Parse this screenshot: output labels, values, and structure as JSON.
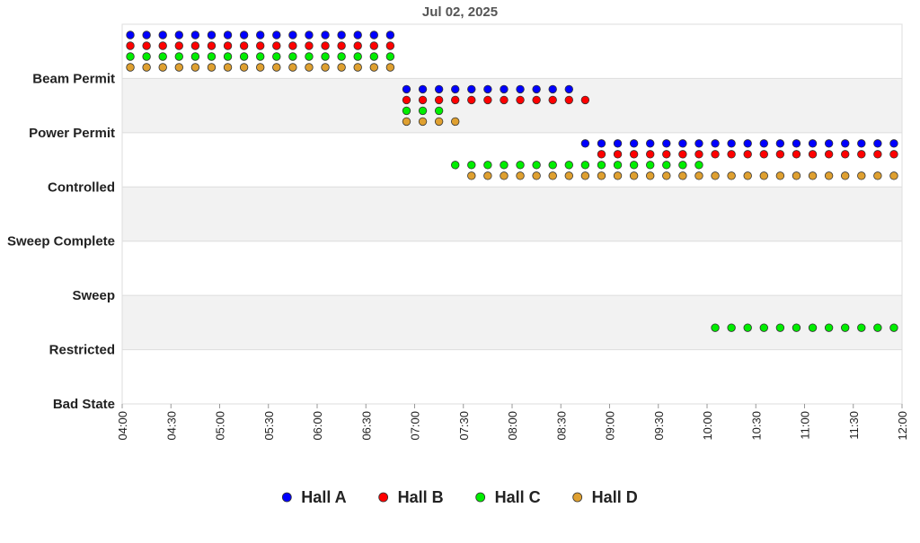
{
  "chart_data": {
    "type": "scatter",
    "title": "Jul 02, 2025",
    "y_categories": [
      "Bad State",
      "Restricted",
      "Sweep",
      "Sweep Complete",
      "Controlled",
      "Power Permit",
      "Beam Permit"
    ],
    "xlim": [
      "04:00",
      "12:00"
    ],
    "xticks": [
      "04:00",
      "04:30",
      "05:00",
      "05:30",
      "06:00",
      "06:30",
      "07:00",
      "07:30",
      "08:00",
      "08:30",
      "09:00",
      "09:30",
      "10:00",
      "10:30",
      "11:00",
      "11:30",
      "12:00"
    ],
    "x": [
      "04:05",
      "04:15",
      "04:25",
      "04:35",
      "04:45",
      "04:55",
      "05:05",
      "05:15",
      "05:25",
      "05:35",
      "05:45",
      "05:55",
      "06:05",
      "06:15",
      "06:25",
      "06:35",
      "06:45",
      "06:55",
      "07:05",
      "07:15",
      "07:25",
      "07:35",
      "07:45",
      "07:55",
      "08:05",
      "08:15",
      "08:25",
      "08:35",
      "08:45",
      "08:55",
      "09:05",
      "09:15",
      "09:25",
      "09:35",
      "09:45",
      "09:55",
      "10:05",
      "10:15",
      "10:25",
      "10:35",
      "10:45",
      "10:55",
      "11:05",
      "11:15",
      "11:25",
      "11:35",
      "11:45",
      "11:55"
    ],
    "series": [
      {
        "name": "Hall A",
        "color": "#0000ff",
        "values": [
          "Beam Permit",
          "Beam Permit",
          "Beam Permit",
          "Beam Permit",
          "Beam Permit",
          "Beam Permit",
          "Beam Permit",
          "Beam Permit",
          "Beam Permit",
          "Beam Permit",
          "Beam Permit",
          "Beam Permit",
          "Beam Permit",
          "Beam Permit",
          "Beam Permit",
          "Beam Permit",
          "Beam Permit",
          "Power Permit",
          "Power Permit",
          "Power Permit",
          "Power Permit",
          "Power Permit",
          "Power Permit",
          "Power Permit",
          "Power Permit",
          "Power Permit",
          "Power Permit",
          "Power Permit",
          "Controlled",
          "Controlled",
          "Controlled",
          "Controlled",
          "Controlled",
          "Controlled",
          "Controlled",
          "Controlled",
          "Controlled",
          "Controlled",
          "Controlled",
          "Controlled",
          "Controlled",
          "Controlled",
          "Controlled",
          "Controlled",
          "Controlled",
          "Controlled",
          "Controlled",
          "Controlled"
        ]
      },
      {
        "name": "Hall B",
        "color": "#ff0000",
        "values": [
          "Beam Permit",
          "Beam Permit",
          "Beam Permit",
          "Beam Permit",
          "Beam Permit",
          "Beam Permit",
          "Beam Permit",
          "Beam Permit",
          "Beam Permit",
          "Beam Permit",
          "Beam Permit",
          "Beam Permit",
          "Beam Permit",
          "Beam Permit",
          "Beam Permit",
          "Beam Permit",
          "Beam Permit",
          "Power Permit",
          "Power Permit",
          "Power Permit",
          "Power Permit",
          "Power Permit",
          "Power Permit",
          "Power Permit",
          "Power Permit",
          "Power Permit",
          "Power Permit",
          "Power Permit",
          "Power Permit",
          "Controlled",
          "Controlled",
          "Controlled",
          "Controlled",
          "Controlled",
          "Controlled",
          "Controlled",
          "Controlled",
          "Controlled",
          "Controlled",
          "Controlled",
          "Controlled",
          "Controlled",
          "Controlled",
          "Controlled",
          "Controlled",
          "Controlled",
          "Controlled",
          "Controlled"
        ]
      },
      {
        "name": "Hall C",
        "color": "#00ee00",
        "values": [
          "Beam Permit",
          "Beam Permit",
          "Beam Permit",
          "Beam Permit",
          "Beam Permit",
          "Beam Permit",
          "Beam Permit",
          "Beam Permit",
          "Beam Permit",
          "Beam Permit",
          "Beam Permit",
          "Beam Permit",
          "Beam Permit",
          "Beam Permit",
          "Beam Permit",
          "Beam Permit",
          "Beam Permit",
          "Power Permit",
          "Power Permit",
          "Power Permit",
          "Controlled",
          "Controlled",
          "Controlled",
          "Controlled",
          "Controlled",
          "Controlled",
          "Controlled",
          "Controlled",
          "Controlled",
          "Controlled",
          "Controlled",
          "Controlled",
          "Controlled",
          "Controlled",
          "Controlled",
          "Controlled",
          "Restricted",
          "Restricted",
          "Restricted",
          "Restricted",
          "Restricted",
          "Restricted",
          "Restricted",
          "Restricted",
          "Restricted",
          "Restricted",
          "Restricted",
          "Restricted"
        ]
      },
      {
        "name": "Hall D",
        "color": "#dfa030",
        "values": [
          "Beam Permit",
          "Beam Permit",
          "Beam Permit",
          "Beam Permit",
          "Beam Permit",
          "Beam Permit",
          "Beam Permit",
          "Beam Permit",
          "Beam Permit",
          "Beam Permit",
          "Beam Permit",
          "Beam Permit",
          "Beam Permit",
          "Beam Permit",
          "Beam Permit",
          "Beam Permit",
          "Beam Permit",
          "Power Permit",
          "Power Permit",
          "Power Permit",
          "Power Permit",
          "Controlled",
          "Controlled",
          "Controlled",
          "Controlled",
          "Controlled",
          "Controlled",
          "Controlled",
          "Controlled",
          "Controlled",
          "Controlled",
          "Controlled",
          "Controlled",
          "Controlled",
          "Controlled",
          "Controlled",
          "Controlled",
          "Controlled",
          "Controlled",
          "Controlled",
          "Controlled",
          "Controlled",
          "Controlled",
          "Controlled",
          "Controlled",
          "Controlled",
          "Controlled",
          "Controlled"
        ]
      }
    ],
    "legend": "bottom"
  }
}
